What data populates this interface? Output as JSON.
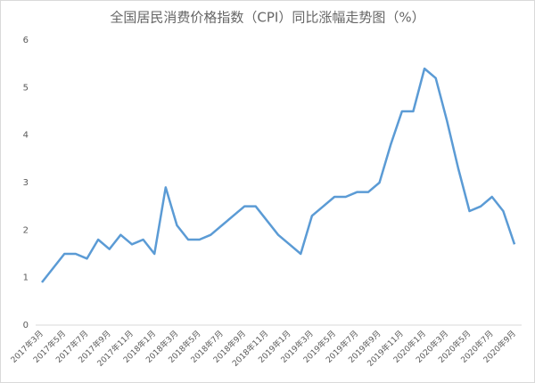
{
  "chart_data": {
    "type": "line",
    "title": "全国居民消费价格指数（CPI）同比涨幅走势图（%）",
    "categories": [
      "2017年3月",
      null,
      "2017年5月",
      null,
      "2017年7月",
      null,
      "2017年9月",
      null,
      "2017年11月",
      null,
      "2018年1月",
      null,
      "2018年3月",
      null,
      "2018年5月",
      null,
      "2018年7月",
      null,
      "2018年9月",
      null,
      "2018年11月",
      null,
      "2019年1月",
      null,
      "2019年3月",
      null,
      "2019年5月",
      null,
      "2019年7月",
      null,
      "2019年9月",
      null,
      "2019年11月",
      null,
      "2020年1月",
      null,
      "2020年3月",
      null,
      "2020年5月",
      null,
      "2020年7月",
      null,
      "2020年9月"
    ],
    "series": [
      {
        "name": "CPI",
        "color": "#5b9bd5",
        "values": [
          0.9,
          1.2,
          1.5,
          1.5,
          1.4,
          1.8,
          1.6,
          1.9,
          1.7,
          1.8,
          1.5,
          2.9,
          2.1,
          1.8,
          1.8,
          1.9,
          2.1,
          2.3,
          2.5,
          2.5,
          2.2,
          1.9,
          1.7,
          1.5,
          2.3,
          2.5,
          2.7,
          2.7,
          2.8,
          2.8,
          3.0,
          3.8,
          4.5,
          4.5,
          5.4,
          5.2,
          4.3,
          3.3,
          2.4,
          2.5,
          2.7,
          2.4,
          1.7
        ]
      }
    ],
    "ylim": [
      0,
      6
    ],
    "yticks": [
      0,
      1,
      2,
      3,
      4,
      5,
      6
    ],
    "grid": false
  }
}
